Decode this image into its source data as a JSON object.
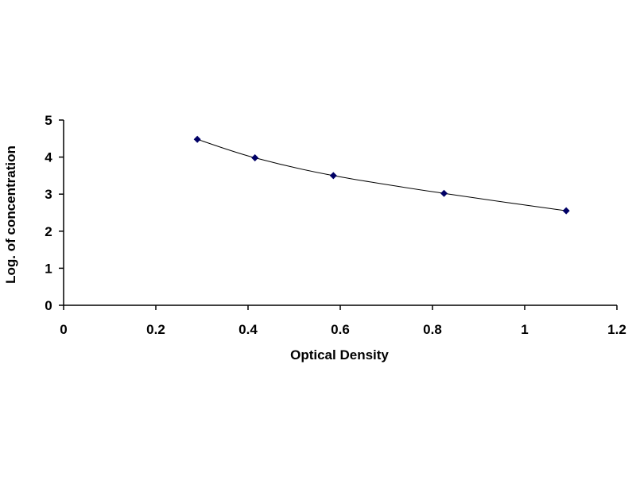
{
  "chart_data": {
    "type": "scatter",
    "xlabel": "Optical Density",
    "ylabel": "Log. of concentration",
    "xlim": [
      0,
      1.2
    ],
    "ylim": [
      0,
      5
    ],
    "xticks": [
      0,
      0.2,
      0.4,
      0.6,
      0.8,
      1,
      1.2
    ],
    "yticks": [
      0,
      1,
      2,
      3,
      4,
      5
    ],
    "xtick_labels": [
      "0",
      "0.2",
      "0.4",
      "0.6",
      "0.8",
      "1",
      "1.2"
    ],
    "ytick_labels": [
      "0",
      "1",
      "2",
      "3",
      "4",
      "5"
    ],
    "grid": false,
    "legend": "none",
    "series": [
      {
        "x": [
          0.29,
          0.415,
          0.585,
          0.825,
          1.09
        ],
        "y": [
          4.48,
          3.98,
          3.5,
          3.02,
          2.55
        ],
        "marker": "diamond",
        "trendline": "smooth",
        "color": "#000066",
        "line_color": "#000000"
      }
    ]
  }
}
